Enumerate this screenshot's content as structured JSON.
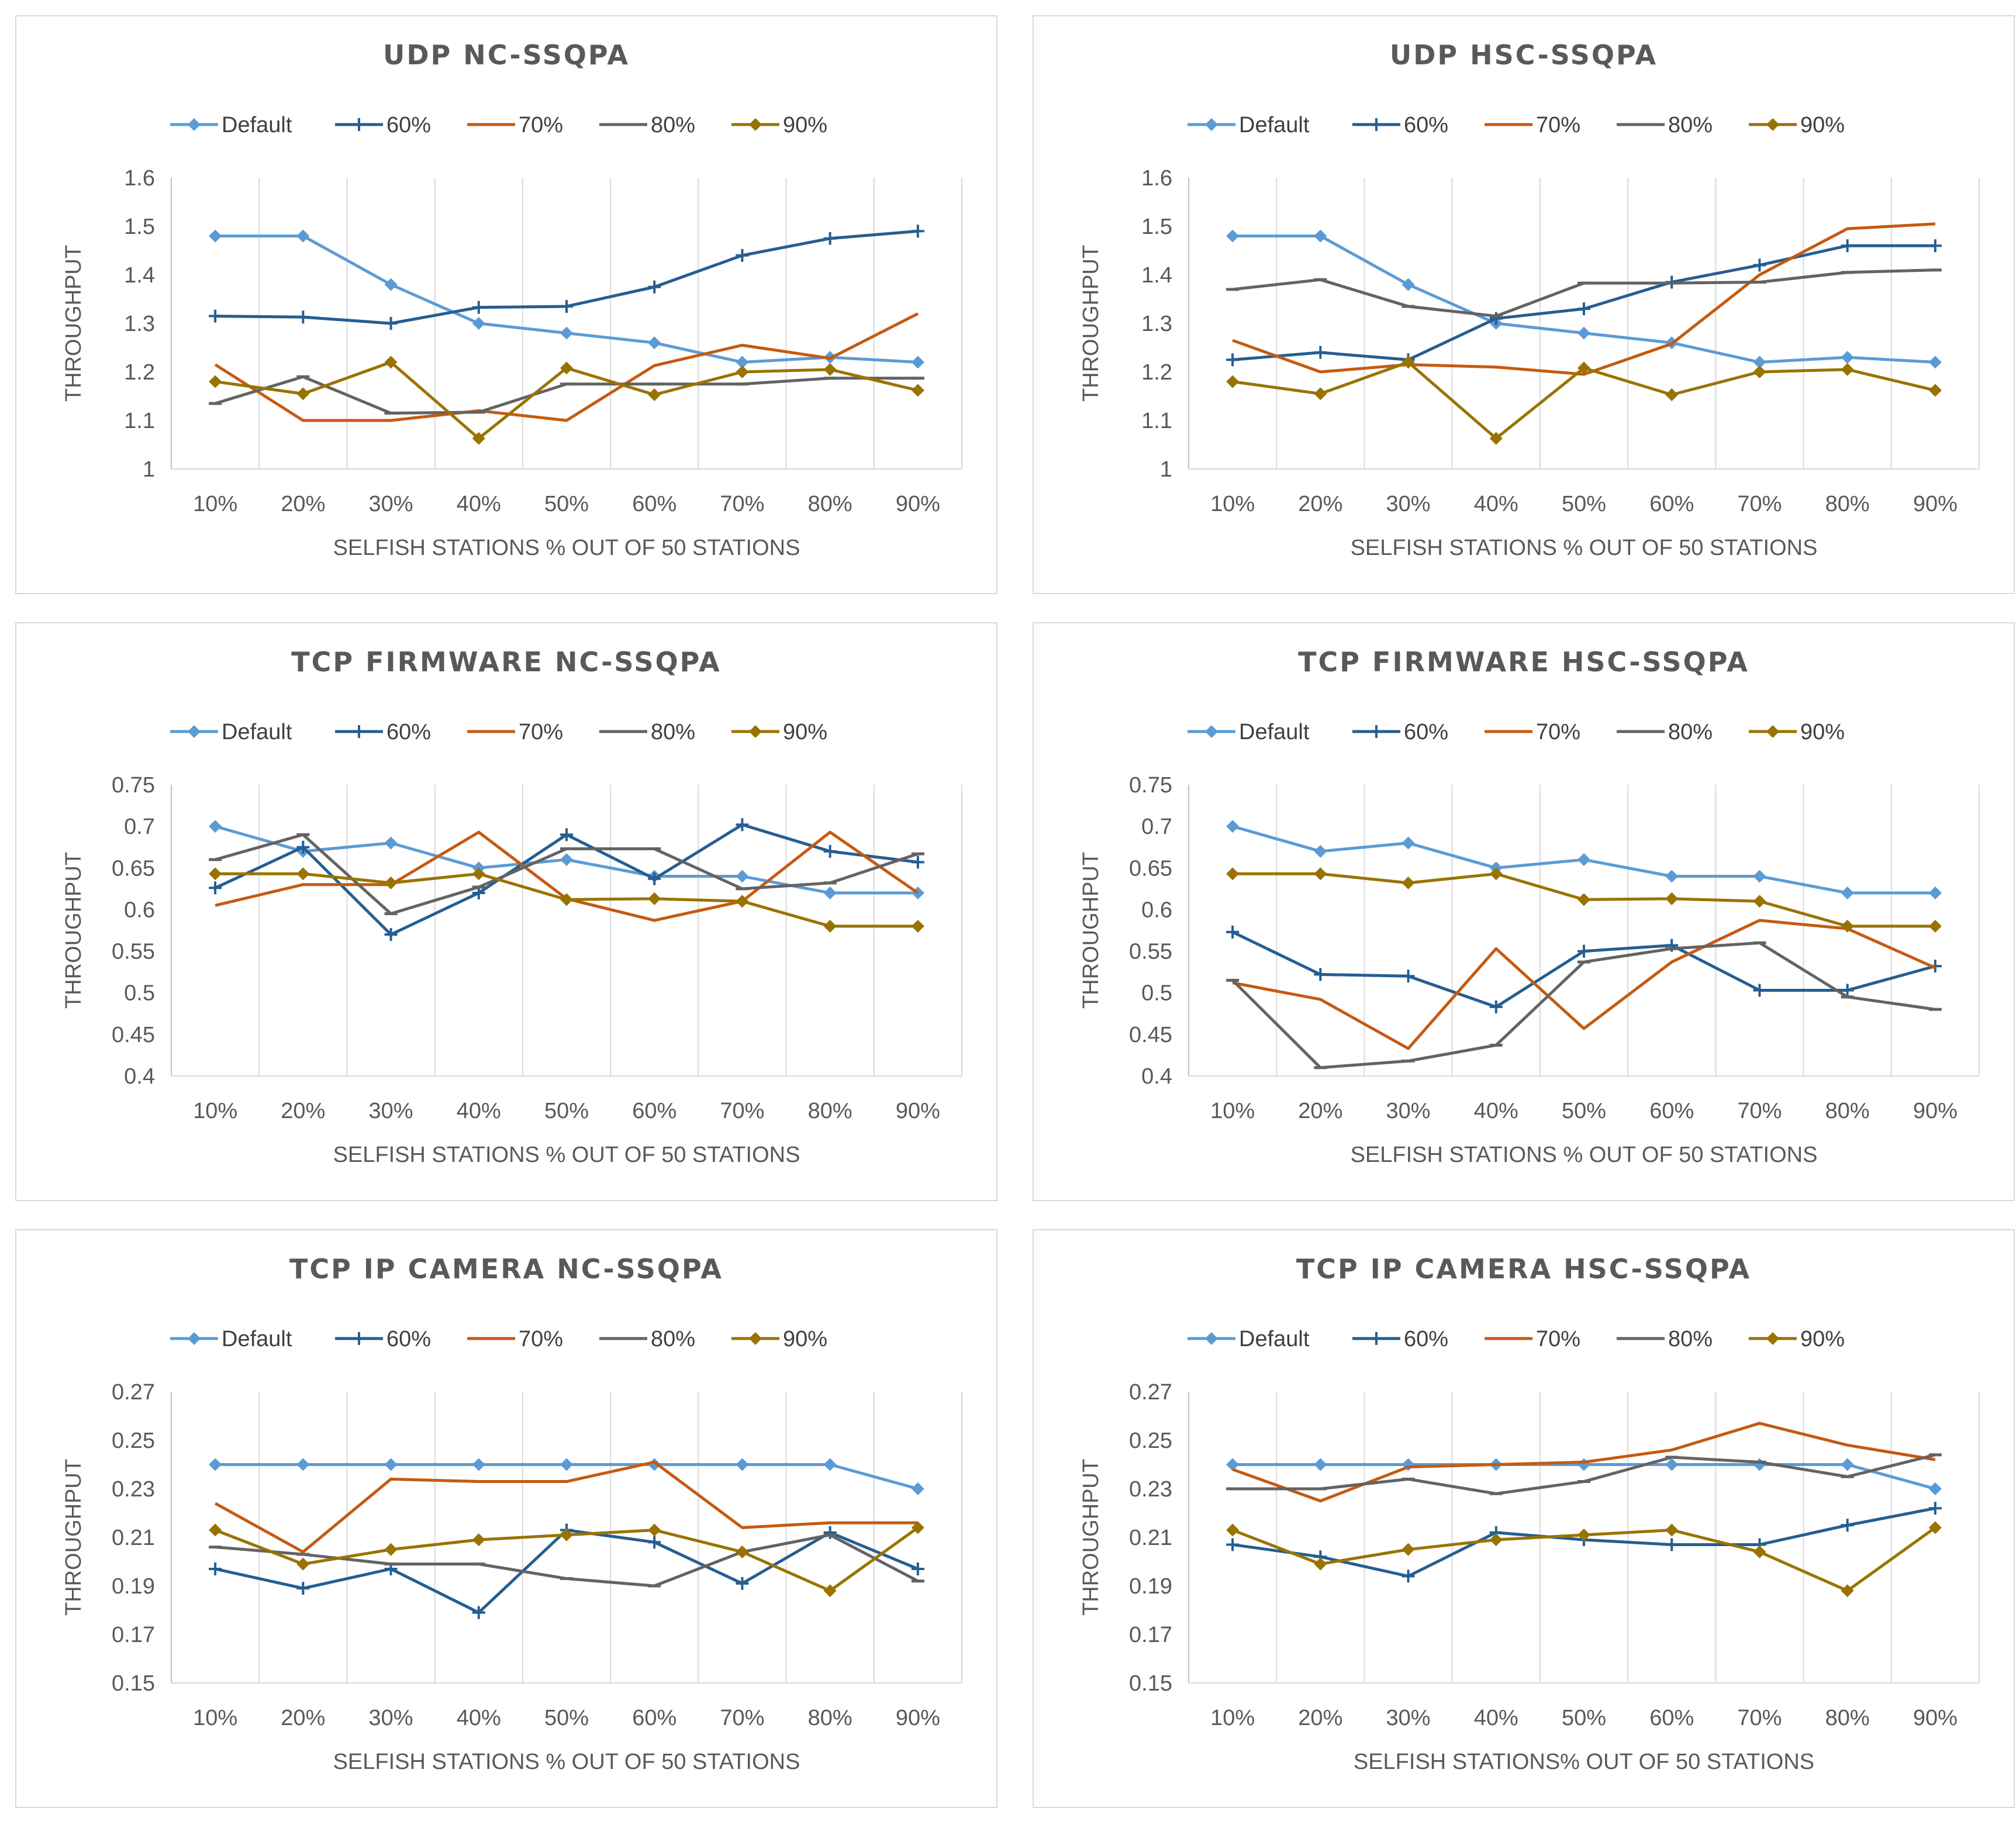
{
  "chart_data": [
    {
      "type": "line",
      "title": "UDP NC-SSQPA",
      "xlabel": "SELFISH STATIONS % OUT OF 50 STATIONS",
      "ylabel": "THROUGHPUT",
      "categories": [
        "10%",
        "20%",
        "30%",
        "40%",
        "50%",
        "60%",
        "70%",
        "80%",
        "90%"
      ],
      "ylim": [
        1,
        1.6
      ],
      "yticks": [
        "1",
        "1.1",
        "1.2",
        "1.3",
        "1.4",
        "1.5",
        "1.6"
      ],
      "series": [
        {
          "name": "Default",
          "color": "#5b9bd5",
          "marker": "diamond",
          "values": [
            1.48,
            1.48,
            1.38,
            1.3,
            1.28,
            1.26,
            1.22,
            1.23,
            1.22
          ]
        },
        {
          "name": "60%",
          "color": "#255e91",
          "marker": "plus",
          "values": [
            1.315,
            1.313,
            1.3,
            1.333,
            1.335,
            1.375,
            1.44,
            1.475,
            1.49
          ]
        },
        {
          "name": "70%",
          "color": "#c55a11",
          "marker": "none",
          "values": [
            1.215,
            1.1,
            1.1,
            1.12,
            1.1,
            1.213,
            1.255,
            1.228,
            1.32
          ]
        },
        {
          "name": "80%",
          "color": "#636363",
          "marker": "dash",
          "values": [
            1.135,
            1.19,
            1.115,
            1.117,
            1.175,
            1.175,
            1.175,
            1.187,
            1.187
          ]
        },
        {
          "name": "90%",
          "color": "#997300",
          "marker": "diamond",
          "values": [
            1.18,
            1.155,
            1.22,
            1.063,
            1.208,
            1.153,
            1.2,
            1.205,
            1.162
          ]
        }
      ]
    },
    {
      "type": "line",
      "title": "UDP HSC-SSQPA",
      "xlabel": "SELFISH STATIONS % OUT OF 50 STATIONS",
      "ylabel": "THROUGHPUT",
      "categories": [
        "10%",
        "20%",
        "30%",
        "40%",
        "50%",
        "60%",
        "70%",
        "80%",
        "90%"
      ],
      "ylim": [
        1,
        1.6
      ],
      "yticks": [
        "1",
        "1.1",
        "1.2",
        "1.3",
        "1.4",
        "1.5",
        "1.6"
      ],
      "series": [
        {
          "name": "Default",
          "color": "#5b9bd5",
          "marker": "diamond",
          "values": [
            1.48,
            1.48,
            1.38,
            1.3,
            1.28,
            1.26,
            1.22,
            1.23,
            1.22
          ]
        },
        {
          "name": "60%",
          "color": "#255e91",
          "marker": "plus",
          "values": [
            1.225,
            1.24,
            1.225,
            1.31,
            1.33,
            1.385,
            1.42,
            1.46,
            1.46
          ]
        },
        {
          "name": "70%",
          "color": "#c55a11",
          "marker": "none",
          "values": [
            1.265,
            1.2,
            1.215,
            1.21,
            1.195,
            1.258,
            1.4,
            1.495,
            1.505
          ]
        },
        {
          "name": "80%",
          "color": "#636363",
          "marker": "dash",
          "values": [
            1.37,
            1.39,
            1.335,
            1.315,
            1.383,
            1.383,
            1.385,
            1.405,
            1.41
          ]
        },
        {
          "name": "90%",
          "color": "#997300",
          "marker": "diamond",
          "values": [
            1.18,
            1.155,
            1.22,
            1.063,
            1.208,
            1.153,
            1.2,
            1.205,
            1.162
          ]
        }
      ]
    },
    {
      "type": "line",
      "title": "TCP FIRMWARE NC-SSQPA",
      "xlabel": "SELFISH STATIONS % OUT OF 50 STATIONS",
      "ylabel": "THROUGHPUT",
      "categories": [
        "10%",
        "20%",
        "30%",
        "40%",
        "50%",
        "60%",
        "70%",
        "80%",
        "90%"
      ],
      "ylim": [
        0.4,
        0.75
      ],
      "yticks": [
        "0.4",
        "0.45",
        "0.5",
        "0.55",
        "0.6",
        "0.65",
        "0.7",
        "0.75"
      ],
      "series": [
        {
          "name": "Default",
          "color": "#5b9bd5",
          "marker": "diamond",
          "values": [
            0.7,
            0.67,
            0.68,
            0.65,
            0.66,
            0.64,
            0.64,
            0.62,
            0.62
          ]
        },
        {
          "name": "60%",
          "color": "#255e91",
          "marker": "plus",
          "values": [
            0.626,
            0.675,
            0.57,
            0.62,
            0.69,
            0.637,
            0.702,
            0.67,
            0.657
          ]
        },
        {
          "name": "70%",
          "color": "#c55a11",
          "marker": "none",
          "values": [
            0.605,
            0.63,
            0.63,
            0.693,
            0.613,
            0.587,
            0.61,
            0.693,
            0.62
          ]
        },
        {
          "name": "80%",
          "color": "#636363",
          "marker": "dash",
          "values": [
            0.66,
            0.69,
            0.595,
            0.627,
            0.673,
            0.673,
            0.625,
            0.632,
            0.667
          ]
        },
        {
          "name": "90%",
          "color": "#997300",
          "marker": "diamond",
          "values": [
            0.643,
            0.643,
            0.632,
            0.643,
            0.612,
            0.613,
            0.61,
            0.58,
            0.58
          ]
        }
      ]
    },
    {
      "type": "line",
      "title": "TCP FIRMWARE HSC-SSQPA",
      "xlabel": "SELFISH STATIONS % OUT OF 50 STATIONS",
      "ylabel": "THROUGHPUT",
      "categories": [
        "10%",
        "20%",
        "30%",
        "40%",
        "50%",
        "60%",
        "70%",
        "80%",
        "90%"
      ],
      "ylim": [
        0.4,
        0.75
      ],
      "yticks": [
        "0.4",
        "0.45",
        "0.5",
        "0.55",
        "0.6",
        "0.65",
        "0.7",
        "0.75"
      ],
      "series": [
        {
          "name": "Default",
          "color": "#5b9bd5",
          "marker": "diamond",
          "values": [
            0.7,
            0.67,
            0.68,
            0.65,
            0.66,
            0.64,
            0.64,
            0.62,
            0.62
          ]
        },
        {
          "name": "60%",
          "color": "#255e91",
          "marker": "plus",
          "values": [
            0.573,
            0.522,
            0.52,
            0.483,
            0.55,
            0.557,
            0.503,
            0.503,
            0.532
          ]
        },
        {
          "name": "70%",
          "color": "#c55a11",
          "marker": "none",
          "values": [
            0.512,
            0.492,
            0.433,
            0.553,
            0.457,
            0.537,
            0.587,
            0.577,
            0.53
          ]
        },
        {
          "name": "80%",
          "color": "#636363",
          "marker": "dash",
          "values": [
            0.515,
            0.41,
            0.418,
            0.437,
            0.537,
            0.553,
            0.56,
            0.495,
            0.48
          ]
        },
        {
          "name": "90%",
          "color": "#997300",
          "marker": "diamond",
          "values": [
            0.643,
            0.643,
            0.632,
            0.643,
            0.612,
            0.613,
            0.61,
            0.58,
            0.58
          ]
        }
      ]
    },
    {
      "type": "line",
      "title": "TCP IP CAMERA NC-SSQPA",
      "xlabel": "SELFISH STATIONS % OUT OF 50 STATIONS",
      "ylabel": "THROUGHPUT",
      "categories": [
        "10%",
        "20%",
        "30%",
        "40%",
        "50%",
        "60%",
        "70%",
        "80%",
        "90%"
      ],
      "ylim": [
        0.15,
        0.27
      ],
      "yticks": [
        "0.15",
        "0.17",
        "0.19",
        "0.21",
        "0.23",
        "0.25",
        "0.27"
      ],
      "series": [
        {
          "name": "Default",
          "color": "#5b9bd5",
          "marker": "diamond",
          "values": [
            0.24,
            0.24,
            0.24,
            0.24,
            0.24,
            0.24,
            0.24,
            0.24,
            0.23
          ]
        },
        {
          "name": "60%",
          "color": "#255e91",
          "marker": "plus",
          "values": [
            0.197,
            0.189,
            0.197,
            0.179,
            0.213,
            0.208,
            0.191,
            0.212,
            0.197
          ]
        },
        {
          "name": "70%",
          "color": "#c55a11",
          "marker": "none",
          "values": [
            0.224,
            0.204,
            0.234,
            0.233,
            0.233,
            0.241,
            0.214,
            0.216,
            0.216
          ]
        },
        {
          "name": "80%",
          "color": "#636363",
          "marker": "dash",
          "values": [
            0.206,
            0.203,
            0.199,
            0.199,
            0.193,
            0.19,
            0.204,
            0.211,
            0.192
          ]
        },
        {
          "name": "90%",
          "color": "#997300",
          "marker": "diamond",
          "values": [
            0.213,
            0.199,
            0.205,
            0.209,
            0.211,
            0.213,
            0.204,
            0.188,
            0.214
          ]
        }
      ]
    },
    {
      "type": "line",
      "title": "TCP IP CAMERA HSC-SSQPA",
      "xlabel": "SELFISH STATIONS% OUT OF 50 STATIONS",
      "ylabel": "THROUGHPUT",
      "categories": [
        "10%",
        "20%",
        "30%",
        "40%",
        "50%",
        "60%",
        "70%",
        "80%",
        "90%"
      ],
      "ylim": [
        0.15,
        0.27
      ],
      "yticks": [
        "0.15",
        "0.17",
        "0.19",
        "0.21",
        "0.23",
        "0.25",
        "0.27"
      ],
      "series": [
        {
          "name": "Default",
          "color": "#5b9bd5",
          "marker": "diamond",
          "values": [
            0.24,
            0.24,
            0.24,
            0.24,
            0.24,
            0.24,
            0.24,
            0.24,
            0.23
          ]
        },
        {
          "name": "60%",
          "color": "#255e91",
          "marker": "plus",
          "values": [
            0.207,
            0.202,
            0.194,
            0.212,
            0.209,
            0.207,
            0.207,
            0.215,
            0.222
          ]
        },
        {
          "name": "70%",
          "color": "#c55a11",
          "marker": "none",
          "values": [
            0.238,
            0.225,
            0.239,
            0.24,
            0.241,
            0.246,
            0.257,
            0.248,
            0.242
          ]
        },
        {
          "name": "80%",
          "color": "#636363",
          "marker": "dash",
          "values": [
            0.23,
            0.23,
            0.234,
            0.228,
            0.233,
            0.243,
            0.241,
            0.235,
            0.244
          ]
        },
        {
          "name": "90%",
          "color": "#997300",
          "marker": "diamond",
          "values": [
            0.213,
            0.199,
            0.205,
            0.209,
            0.211,
            0.213,
            0.204,
            0.188,
            0.214
          ]
        }
      ]
    }
  ]
}
